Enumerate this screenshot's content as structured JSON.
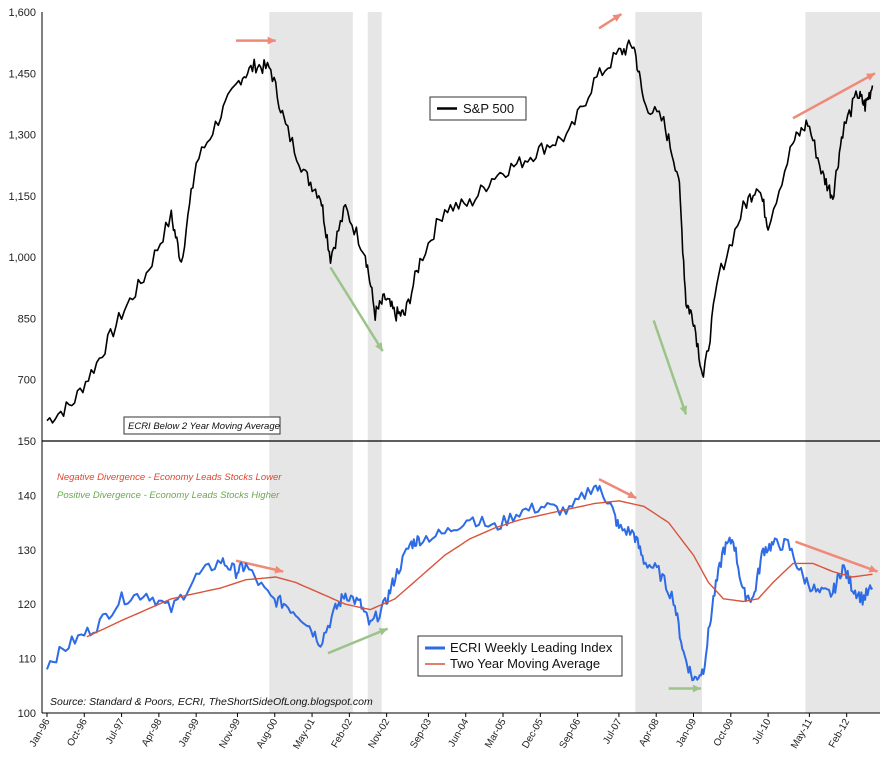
{
  "chart_data": [
    {
      "type": "line",
      "panel": "top",
      "ylim": [
        550,
        1600
      ],
      "y_ticks": [
        "1,600",
        "1,450",
        "1,300",
        "1,150",
        "1,000",
        "850",
        "700"
      ],
      "y_tick_values": [
        1600,
        1450,
        1300,
        1150,
        1000,
        850,
        700
      ],
      "legend": "S&P 500",
      "series": [
        {
          "name": "S&P 500",
          "color": "#000000",
          "x": [
            1996.0,
            1996.5,
            1997.0,
            1997.5,
            1998.0,
            1998.5,
            1998.7,
            1999.0,
            1999.5,
            1999.9,
            2000.2,
            2000.5,
            2000.8,
            2001.2,
            2001.5,
            2001.7,
            2002.0,
            2002.4,
            2002.6,
            2002.8,
            2003.0,
            2003.2,
            2003.5,
            2004.0,
            2004.5,
            2005.0,
            2005.5,
            2006.0,
            2006.5,
            2007.0,
            2007.5,
            2007.8,
            2008.0,
            2008.4,
            2008.7,
            2008.85,
            2009.0,
            2009.2,
            2009.5,
            2010.0,
            2010.3,
            2010.5,
            2011.0,
            2011.3,
            2011.6,
            2011.8,
            2012.0,
            2012.3,
            2012.45,
            2012.6
          ],
          "y": [
            600,
            640,
            740,
            860,
            960,
            1100,
            990,
            1230,
            1350,
            1440,
            1470,
            1460,
            1320,
            1200,
            1150,
            1000,
            1120,
            1010,
            860,
            900,
            860,
            860,
            990,
            1120,
            1130,
            1200,
            1230,
            1270,
            1300,
            1430,
            1500,
            1520,
            1380,
            1330,
            1200,
            890,
            850,
            700,
            950,
            1120,
            1180,
            1080,
            1280,
            1330,
            1200,
            1150,
            1310,
            1400,
            1370,
            1420
          ]
        }
      ]
    },
    {
      "type": "line",
      "panel": "bottom",
      "ylim": [
        100,
        150
      ],
      "y_ticks": [
        "150",
        "140",
        "130",
        "120",
        "110",
        "100"
      ],
      "y_tick_values": [
        150,
        140,
        130,
        120,
        110,
        100
      ],
      "x_tick_labels": [
        "Jan-96",
        "Oct-96",
        "Jul-97",
        "Apr-98",
        "Jan-99",
        "Nov-99",
        "Aug-00",
        "May-01",
        "Feb-02",
        "Nov-02",
        "Sep-03",
        "Jun-04",
        "Mar-05",
        "Dec-05",
        "Sep-06",
        "Jul-07",
        "Apr-08",
        "Jan-09",
        "Oct-09",
        "Jul-10",
        "May-11",
        "Feb-12"
      ],
      "x_tick_values": [
        1996.0,
        1996.75,
        1997.5,
        1998.25,
        1999.0,
        1999.83,
        2000.58,
        2001.33,
        2002.08,
        2002.83,
        2003.67,
        2004.42,
        2005.17,
        2005.92,
        2006.67,
        2007.5,
        2008.25,
        2009.0,
        2009.75,
        2010.5,
        2011.33,
        2012.08
      ],
      "series": [
        {
          "name": "ECRI Weekly Leading Index",
          "color": "#2e6be6",
          "x": [
            1996.0,
            1996.5,
            1997.0,
            1997.5,
            1998.0,
            1998.5,
            1999.0,
            1999.5,
            1999.8,
            2000.0,
            2000.5,
            2000.8,
            2001.2,
            2001.5,
            2001.8,
            2002.0,
            2002.3,
            2002.5,
            2002.8,
            2003.0,
            2003.3,
            2003.5,
            2004.0,
            2004.5,
            2005.0,
            2005.5,
            2006.0,
            2006.5,
            2007.0,
            2007.3,
            2007.5,
            2007.8,
            2008.0,
            2008.3,
            2008.6,
            2008.8,
            2009.0,
            2009.2,
            2009.4,
            2009.6,
            2009.8,
            2010.0,
            2010.2,
            2010.4,
            2010.6,
            2010.9,
            2011.2,
            2011.5,
            2011.8,
            2012.0,
            2012.2,
            2012.4,
            2012.6
          ],
          "y": [
            109,
            113,
            116,
            121,
            122,
            119,
            125,
            128,
            126,
            127,
            121,
            120,
            117,
            113,
            119,
            122,
            120,
            116,
            120,
            125,
            131,
            132,
            133,
            136,
            134,
            137,
            138,
            137,
            142,
            139,
            134,
            133,
            128,
            126,
            121,
            111,
            106,
            108,
            121,
            130,
            132,
            122,
            121,
            130,
            131,
            131,
            125,
            122,
            122,
            127,
            123,
            121,
            123
          ]
        },
        {
          "name": "Two Year Moving Average",
          "color": "#d9533b",
          "x": [
            1996.8,
            1997.5,
            1998.0,
            1998.5,
            1999.0,
            1999.5,
            2000.0,
            2000.6,
            2001.0,
            2001.5,
            2002.0,
            2002.5,
            2003.0,
            2003.5,
            2004.0,
            2004.5,
            2005.0,
            2005.5,
            2006.0,
            2006.5,
            2007.0,
            2007.5,
            2008.0,
            2008.5,
            2009.0,
            2009.3,
            2009.6,
            2010.0,
            2010.3,
            2010.6,
            2011.0,
            2011.4,
            2011.8,
            2012.2,
            2012.6
          ],
          "y": [
            114,
            117,
            119,
            121,
            122,
            123,
            124.5,
            125,
            124,
            122,
            120,
            119,
            121,
            125,
            129,
            132,
            134,
            135.5,
            136.5,
            137.5,
            138.5,
            139,
            138,
            135,
            129,
            124,
            121,
            120.5,
            121,
            124,
            127.5,
            127.5,
            126,
            125,
            125.5
          ]
        }
      ]
    }
  ],
  "x_range": [
    1995.9,
    2012.75
  ],
  "recessions": [
    [
      2000.47,
      2002.15
    ],
    [
      2002.45,
      2002.73
    ],
    [
      2007.83,
      2009.17
    ],
    [
      2011.25,
      2012.75
    ]
  ],
  "ecri_label": "ECRI Below 2 Year Moving Average",
  "notes": {
    "negative": "Negative Divergence - Economy Leads Stocks Lower",
    "positive": "Positive Divergence - Economy Leads Stocks Higher"
  },
  "source": "Source: Standard & Poors, ECRI, TheShortSideOfLong.blogspot.com",
  "colors": {
    "red_arrow": "#ef8a78",
    "green_arrow": "#9bc48a",
    "shade": "#e6e6e6",
    "negative_note": "#e0452e",
    "positive_note": "#6aa84f"
  }
}
